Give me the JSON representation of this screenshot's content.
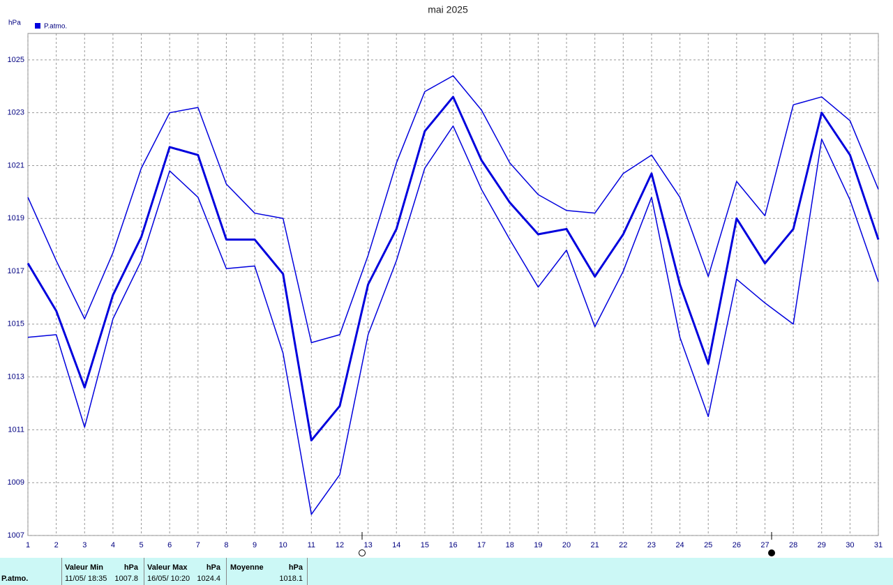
{
  "chart_data": {
    "type": "line",
    "title": "mai 2025",
    "y_label": "hPa",
    "xlim": [
      1,
      31
    ],
    "xticks": [
      1,
      2,
      3,
      4,
      5,
      6,
      7,
      8,
      9,
      10,
      11,
      12,
      13,
      14,
      15,
      16,
      17,
      18,
      19,
      20,
      21,
      22,
      23,
      24,
      25,
      26,
      27,
      28,
      29,
      30,
      31
    ],
    "x": [
      1,
      2,
      3,
      4,
      5,
      6,
      7,
      8,
      9,
      10,
      11,
      12,
      13,
      14,
      15,
      16,
      17,
      18,
      19,
      20,
      21,
      22,
      23,
      24,
      25,
      26,
      27,
      28,
      29,
      30,
      31
    ],
    "ylim": [
      1007,
      1026
    ],
    "yticks": [
      1007,
      1009,
      1011,
      1013,
      1015,
      1017,
      1019,
      1021,
      1023,
      1025
    ],
    "grid": true,
    "series": [
      {
        "name": "P.atmo.",
        "color": "#0000dd",
        "width": 3,
        "values": [
          1017.3,
          1015.5,
          1012.6,
          1016.1,
          1018.3,
          1021.7,
          1021.4,
          1018.2,
          1018.2,
          1016.9,
          1010.6,
          1011.9,
          1016.5,
          1018.6,
          1022.3,
          1023.6,
          1021.2,
          1019.6,
          1018.4,
          1018.6,
          1016.8,
          1018.4,
          1020.7,
          1016.5,
          1013.5,
          1019.0,
          1017.3,
          1018.6,
          1023.0,
          1021.4,
          1018.2
        ]
      },
      {
        "color": "#0000dd",
        "width": 1.5,
        "values": [
          1019.8,
          1017.4,
          1015.2,
          1017.7,
          1020.9,
          1023.0,
          1023.2,
          1020.3,
          1019.2,
          1019.0,
          1014.3,
          1014.6,
          1017.6,
          1021.1,
          1023.8,
          1024.4,
          1023.1,
          1021.1,
          1019.9,
          1019.3,
          1019.2,
          1020.7,
          1021.4,
          1019.8,
          1016.8,
          1020.4,
          1019.1,
          1023.3,
          1023.6,
          1022.7,
          1020.1
        ]
      },
      {
        "color": "#0000dd",
        "width": 1.5,
        "values": [
          1014.5,
          1014.6,
          1011.1,
          1015.2,
          1017.4,
          1020.8,
          1019.8,
          1017.1,
          1017.2,
          1013.9,
          1007.8,
          1009.3,
          1014.6,
          1017.4,
          1020.9,
          1022.5,
          1020.1,
          1018.2,
          1016.4,
          1017.8,
          1014.9,
          1017.0,
          1019.8,
          1014.5,
          1011.5,
          1016.7,
          1015.8,
          1015.0,
          1022.0,
          1019.7,
          1016.6
        ]
      }
    ]
  },
  "summary": {
    "row_label": "P.atmo.",
    "min": {
      "header": "Valeur Min",
      "unit": "hPa",
      "date": "11/05/ 18:35",
      "value": 1007.8
    },
    "max": {
      "header": "Valeur Max",
      "unit": "hPa",
      "date": "16/05/ 10:20",
      "value": 1024.4
    },
    "mean": {
      "header": "Moyenne",
      "unit": "hPa",
      "value": 1018.1
    }
  }
}
